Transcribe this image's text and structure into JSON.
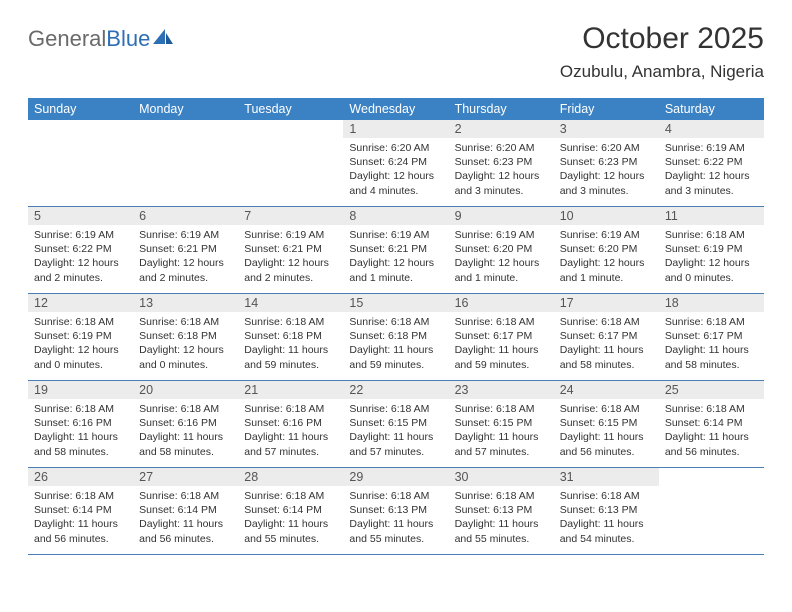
{
  "logo": {
    "part1": "General",
    "part2": "Blue"
  },
  "title": "October 2025",
  "location": "Ozubulu, Anambra, Nigeria",
  "colors": {
    "header_bg": "#3b82c4",
    "header_text": "#ffffff",
    "daynum_bg": "#ececec",
    "border": "#4a7fb5",
    "logo_gray": "#6a6a6a",
    "logo_blue": "#2d6fb5",
    "text": "#333333"
  },
  "dayNames": [
    "Sunday",
    "Monday",
    "Tuesday",
    "Wednesday",
    "Thursday",
    "Friday",
    "Saturday"
  ],
  "weeks": [
    [
      {
        "n": "",
        "sunrise": "",
        "sunset": "",
        "dl1": "",
        "dl2": ""
      },
      {
        "n": "",
        "sunrise": "",
        "sunset": "",
        "dl1": "",
        "dl2": ""
      },
      {
        "n": "",
        "sunrise": "",
        "sunset": "",
        "dl1": "",
        "dl2": ""
      },
      {
        "n": "1",
        "sunrise": "Sunrise: 6:20 AM",
        "sunset": "Sunset: 6:24 PM",
        "dl1": "Daylight: 12 hours",
        "dl2": "and 4 minutes."
      },
      {
        "n": "2",
        "sunrise": "Sunrise: 6:20 AM",
        "sunset": "Sunset: 6:23 PM",
        "dl1": "Daylight: 12 hours",
        "dl2": "and 3 minutes."
      },
      {
        "n": "3",
        "sunrise": "Sunrise: 6:20 AM",
        "sunset": "Sunset: 6:23 PM",
        "dl1": "Daylight: 12 hours",
        "dl2": "and 3 minutes."
      },
      {
        "n": "4",
        "sunrise": "Sunrise: 6:19 AM",
        "sunset": "Sunset: 6:22 PM",
        "dl1": "Daylight: 12 hours",
        "dl2": "and 3 minutes."
      }
    ],
    [
      {
        "n": "5",
        "sunrise": "Sunrise: 6:19 AM",
        "sunset": "Sunset: 6:22 PM",
        "dl1": "Daylight: 12 hours",
        "dl2": "and 2 minutes."
      },
      {
        "n": "6",
        "sunrise": "Sunrise: 6:19 AM",
        "sunset": "Sunset: 6:21 PM",
        "dl1": "Daylight: 12 hours",
        "dl2": "and 2 minutes."
      },
      {
        "n": "7",
        "sunrise": "Sunrise: 6:19 AM",
        "sunset": "Sunset: 6:21 PM",
        "dl1": "Daylight: 12 hours",
        "dl2": "and 2 minutes."
      },
      {
        "n": "8",
        "sunrise": "Sunrise: 6:19 AM",
        "sunset": "Sunset: 6:21 PM",
        "dl1": "Daylight: 12 hours",
        "dl2": "and 1 minute."
      },
      {
        "n": "9",
        "sunrise": "Sunrise: 6:19 AM",
        "sunset": "Sunset: 6:20 PM",
        "dl1": "Daylight: 12 hours",
        "dl2": "and 1 minute."
      },
      {
        "n": "10",
        "sunrise": "Sunrise: 6:19 AM",
        "sunset": "Sunset: 6:20 PM",
        "dl1": "Daylight: 12 hours",
        "dl2": "and 1 minute."
      },
      {
        "n": "11",
        "sunrise": "Sunrise: 6:18 AM",
        "sunset": "Sunset: 6:19 PM",
        "dl1": "Daylight: 12 hours",
        "dl2": "and 0 minutes."
      }
    ],
    [
      {
        "n": "12",
        "sunrise": "Sunrise: 6:18 AM",
        "sunset": "Sunset: 6:19 PM",
        "dl1": "Daylight: 12 hours",
        "dl2": "and 0 minutes."
      },
      {
        "n": "13",
        "sunrise": "Sunrise: 6:18 AM",
        "sunset": "Sunset: 6:18 PM",
        "dl1": "Daylight: 12 hours",
        "dl2": "and 0 minutes."
      },
      {
        "n": "14",
        "sunrise": "Sunrise: 6:18 AM",
        "sunset": "Sunset: 6:18 PM",
        "dl1": "Daylight: 11 hours",
        "dl2": "and 59 minutes."
      },
      {
        "n": "15",
        "sunrise": "Sunrise: 6:18 AM",
        "sunset": "Sunset: 6:18 PM",
        "dl1": "Daylight: 11 hours",
        "dl2": "and 59 minutes."
      },
      {
        "n": "16",
        "sunrise": "Sunrise: 6:18 AM",
        "sunset": "Sunset: 6:17 PM",
        "dl1": "Daylight: 11 hours",
        "dl2": "and 59 minutes."
      },
      {
        "n": "17",
        "sunrise": "Sunrise: 6:18 AM",
        "sunset": "Sunset: 6:17 PM",
        "dl1": "Daylight: 11 hours",
        "dl2": "and 58 minutes."
      },
      {
        "n": "18",
        "sunrise": "Sunrise: 6:18 AM",
        "sunset": "Sunset: 6:17 PM",
        "dl1": "Daylight: 11 hours",
        "dl2": "and 58 minutes."
      }
    ],
    [
      {
        "n": "19",
        "sunrise": "Sunrise: 6:18 AM",
        "sunset": "Sunset: 6:16 PM",
        "dl1": "Daylight: 11 hours",
        "dl2": "and 58 minutes."
      },
      {
        "n": "20",
        "sunrise": "Sunrise: 6:18 AM",
        "sunset": "Sunset: 6:16 PM",
        "dl1": "Daylight: 11 hours",
        "dl2": "and 58 minutes."
      },
      {
        "n": "21",
        "sunrise": "Sunrise: 6:18 AM",
        "sunset": "Sunset: 6:16 PM",
        "dl1": "Daylight: 11 hours",
        "dl2": "and 57 minutes."
      },
      {
        "n": "22",
        "sunrise": "Sunrise: 6:18 AM",
        "sunset": "Sunset: 6:15 PM",
        "dl1": "Daylight: 11 hours",
        "dl2": "and 57 minutes."
      },
      {
        "n": "23",
        "sunrise": "Sunrise: 6:18 AM",
        "sunset": "Sunset: 6:15 PM",
        "dl1": "Daylight: 11 hours",
        "dl2": "and 57 minutes."
      },
      {
        "n": "24",
        "sunrise": "Sunrise: 6:18 AM",
        "sunset": "Sunset: 6:15 PM",
        "dl1": "Daylight: 11 hours",
        "dl2": "and 56 minutes."
      },
      {
        "n": "25",
        "sunrise": "Sunrise: 6:18 AM",
        "sunset": "Sunset: 6:14 PM",
        "dl1": "Daylight: 11 hours",
        "dl2": "and 56 minutes."
      }
    ],
    [
      {
        "n": "26",
        "sunrise": "Sunrise: 6:18 AM",
        "sunset": "Sunset: 6:14 PM",
        "dl1": "Daylight: 11 hours",
        "dl2": "and 56 minutes."
      },
      {
        "n": "27",
        "sunrise": "Sunrise: 6:18 AM",
        "sunset": "Sunset: 6:14 PM",
        "dl1": "Daylight: 11 hours",
        "dl2": "and 56 minutes."
      },
      {
        "n": "28",
        "sunrise": "Sunrise: 6:18 AM",
        "sunset": "Sunset: 6:14 PM",
        "dl1": "Daylight: 11 hours",
        "dl2": "and 55 minutes."
      },
      {
        "n": "29",
        "sunrise": "Sunrise: 6:18 AM",
        "sunset": "Sunset: 6:13 PM",
        "dl1": "Daylight: 11 hours",
        "dl2": "and 55 minutes."
      },
      {
        "n": "30",
        "sunrise": "Sunrise: 6:18 AM",
        "sunset": "Sunset: 6:13 PM",
        "dl1": "Daylight: 11 hours",
        "dl2": "and 55 minutes."
      },
      {
        "n": "31",
        "sunrise": "Sunrise: 6:18 AM",
        "sunset": "Sunset: 6:13 PM",
        "dl1": "Daylight: 11 hours",
        "dl2": "and 54 minutes."
      },
      {
        "n": "",
        "sunrise": "",
        "sunset": "",
        "dl1": "",
        "dl2": ""
      }
    ]
  ]
}
